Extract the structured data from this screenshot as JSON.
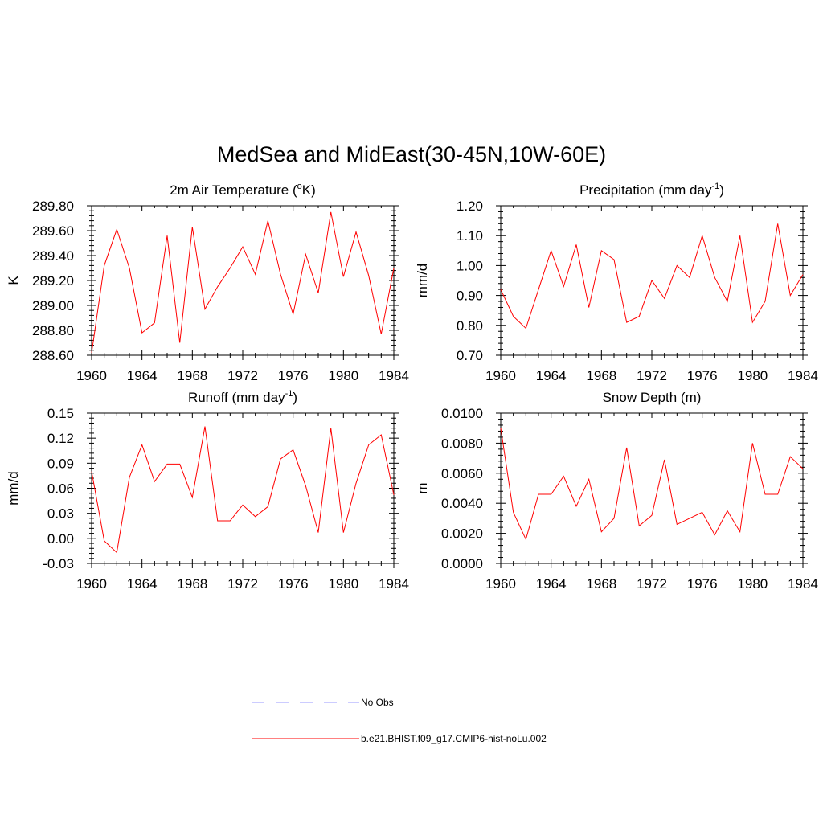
{
  "figure": {
    "title": "MedSea and MidEast(30-45N,10W-60E)"
  },
  "chart_data": [
    {
      "type": "line",
      "title": "2m Air Temperature (oK)",
      "title_parts": [
        "2m Air Temperature (",
        "o",
        "K)"
      ],
      "ylabel": "K",
      "xlim": [
        1960,
        1984
      ],
      "ylim": [
        288.6,
        289.8
      ],
      "x_ticks": [
        1960,
        1964,
        1968,
        1972,
        1976,
        1980,
        1984
      ],
      "y_ticks": [
        "288.60",
        "288.80",
        "289.00",
        "289.20",
        "289.40",
        "289.60",
        "289.80"
      ],
      "x": [
        1960,
        1961,
        1962,
        1963,
        1964,
        1965,
        1966,
        1967,
        1968,
        1969,
        1970,
        1971,
        1972,
        1973,
        1974,
        1975,
        1976,
        1977,
        1978,
        1979,
        1980,
        1981,
        1982,
        1983,
        1984
      ],
      "series": [
        {
          "name": "b.e21.BHIST.f09_g17.CMIP6-hist-noLu.002",
          "color": "#ff0000",
          "values": [
            288.62,
            289.32,
            289.61,
            289.3,
            288.78,
            288.86,
            289.56,
            288.7,
            289.63,
            288.97,
            289.15,
            289.3,
            289.47,
            289.25,
            289.68,
            289.25,
            288.93,
            289.41,
            289.1,
            289.75,
            289.23,
            289.59,
            289.24,
            288.77,
            289.3
          ]
        }
      ]
    },
    {
      "type": "line",
      "title": "Precipitation (mm day-1)",
      "title_parts": [
        "Precipitation (mm day",
        "-1",
        ")"
      ],
      "ylabel": "mm/d",
      "xlim": [
        1960,
        1984
      ],
      "ylim": [
        0.7,
        1.2
      ],
      "x_ticks": [
        1960,
        1964,
        1968,
        1972,
        1976,
        1980,
        1984
      ],
      "y_ticks": [
        "0.70",
        "0.80",
        "0.90",
        "1.00",
        "1.10",
        "1.20"
      ],
      "x": [
        1960,
        1961,
        1962,
        1963,
        1964,
        1965,
        1966,
        1967,
        1968,
        1969,
        1970,
        1971,
        1972,
        1973,
        1974,
        1975,
        1976,
        1977,
        1978,
        1979,
        1980,
        1981,
        1982,
        1983,
        1984
      ],
      "series": [
        {
          "name": "b.e21.BHIST.f09_g17.CMIP6-hist-noLu.002",
          "color": "#ff0000",
          "values": [
            0.92,
            0.83,
            0.79,
            0.92,
            1.05,
            0.93,
            1.07,
            0.86,
            1.05,
            1.02,
            0.81,
            0.83,
            0.95,
            0.89,
            1.0,
            0.96,
            1.1,
            0.96,
            0.88,
            1.1,
            0.81,
            0.88,
            1.14,
            0.9,
            0.97
          ]
        }
      ]
    },
    {
      "type": "line",
      "title": "Runoff (mm day-1)",
      "title_parts": [
        "Runoff (mm day",
        "-1",
        ")"
      ],
      "ylabel": "mm/d",
      "xlim": [
        1960,
        1984
      ],
      "ylim": [
        -0.03,
        0.15
      ],
      "x_ticks": [
        1960,
        1964,
        1968,
        1972,
        1976,
        1980,
        1984
      ],
      "y_ticks": [
        "-0.03",
        "0.00",
        "0.03",
        "0.06",
        "0.09",
        "0.12",
        "0.15"
      ],
      "x": [
        1960,
        1961,
        1962,
        1963,
        1964,
        1965,
        1966,
        1967,
        1968,
        1969,
        1970,
        1971,
        1972,
        1973,
        1974,
        1975,
        1976,
        1977,
        1978,
        1979,
        1980,
        1981,
        1982,
        1983,
        1984
      ],
      "series": [
        {
          "name": "b.e21.BHIST.f09_g17.CMIP6-hist-noLu.002",
          "color": "#ff0000",
          "values": [
            0.08,
            -0.003,
            -0.017,
            0.073,
            0.112,
            0.068,
            0.089,
            0.089,
            0.049,
            0.134,
            0.021,
            0.021,
            0.04,
            0.026,
            0.038,
            0.095,
            0.106,
            0.063,
            0.007,
            0.132,
            0.007,
            0.066,
            0.112,
            0.124,
            0.052
          ]
        }
      ]
    },
    {
      "type": "line",
      "title": "Snow Depth (m)",
      "title_parts": [
        "Snow Depth (m)",
        "",
        ""
      ],
      "ylabel": "m",
      "xlim": [
        1960,
        1984
      ],
      "ylim": [
        0.0,
        0.01
      ],
      "x_ticks": [
        1960,
        1964,
        1968,
        1972,
        1976,
        1980,
        1984
      ],
      "y_ticks": [
        "0.0000",
        "0.0020",
        "0.0040",
        "0.0060",
        "0.0080",
        "0.0100"
      ],
      "x": [
        1960,
        1961,
        1962,
        1963,
        1964,
        1965,
        1966,
        1967,
        1968,
        1969,
        1970,
        1971,
        1972,
        1973,
        1974,
        1975,
        1976,
        1977,
        1978,
        1979,
        1980,
        1981,
        1982,
        1983,
        1984
      ],
      "series": [
        {
          "name": "b.e21.BHIST.f09_g17.CMIP6-hist-noLu.002",
          "color": "#ff0000",
          "values": [
            0.009,
            0.0034,
            0.0016,
            0.0046,
            0.0046,
            0.0058,
            0.0038,
            0.0056,
            0.0021,
            0.003,
            0.0077,
            0.0025,
            0.0032,
            0.0069,
            0.0026,
            0.003,
            0.0034,
            0.0019,
            0.0035,
            0.0021,
            0.008,
            0.0046,
            0.0046,
            0.0071,
            0.0063
          ]
        }
      ]
    }
  ],
  "legend": {
    "items": [
      {
        "label": "No Obs",
        "color": "#9999ff",
        "style": "dashed"
      },
      {
        "label": "b.e21.BHIST.f09_g17.CMIP6-hist-noLu.002",
        "color": "#ff0000",
        "style": "solid"
      }
    ]
  }
}
